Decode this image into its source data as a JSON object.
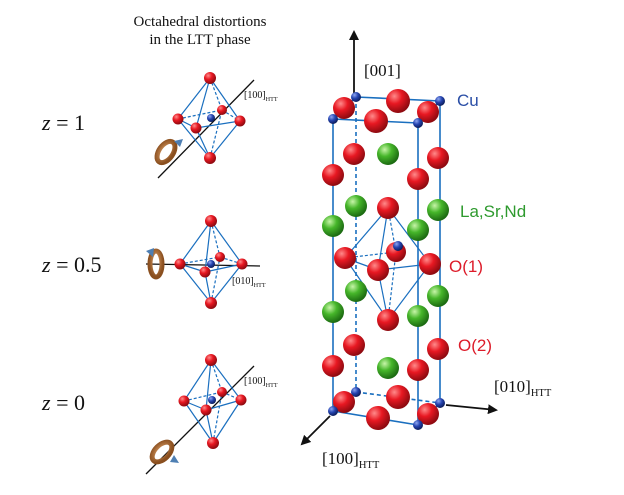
{
  "title": {
    "line1": "Octahedral distortions",
    "line2": "in the LTT phase"
  },
  "z_labels": [
    {
      "var": "z",
      "value": "= 1"
    },
    {
      "var": "z",
      "value": "= 0.5"
    },
    {
      "var": "z",
      "value": "= 0"
    }
  ],
  "octa_axes": [
    {
      "main": "[100]",
      "sub": "HTT"
    },
    {
      "main": "[010]",
      "sub": "HTT"
    },
    {
      "main": "[100]",
      "sub": "HTT"
    }
  ],
  "lattice_axes": {
    "c": {
      "main": "[001]"
    },
    "b": {
      "main": "[010]",
      "sub": "HTT"
    },
    "a": {
      "main": "[100]",
      "sub": "HTT"
    }
  },
  "legend": {
    "cu": "Cu",
    "la": "La,Sr,Nd",
    "o1": "O(1)",
    "o2": "O(2)"
  },
  "colors": {
    "cu": "#1f3fa3",
    "la": "#33a81c",
    "oxygen": "#e0101a",
    "bond": "#1a6fbf",
    "rotation": "#b9743a",
    "text_cu": "#2a4ea6",
    "text_la": "#2e9a2e",
    "text_o": "#dd1c2a"
  }
}
